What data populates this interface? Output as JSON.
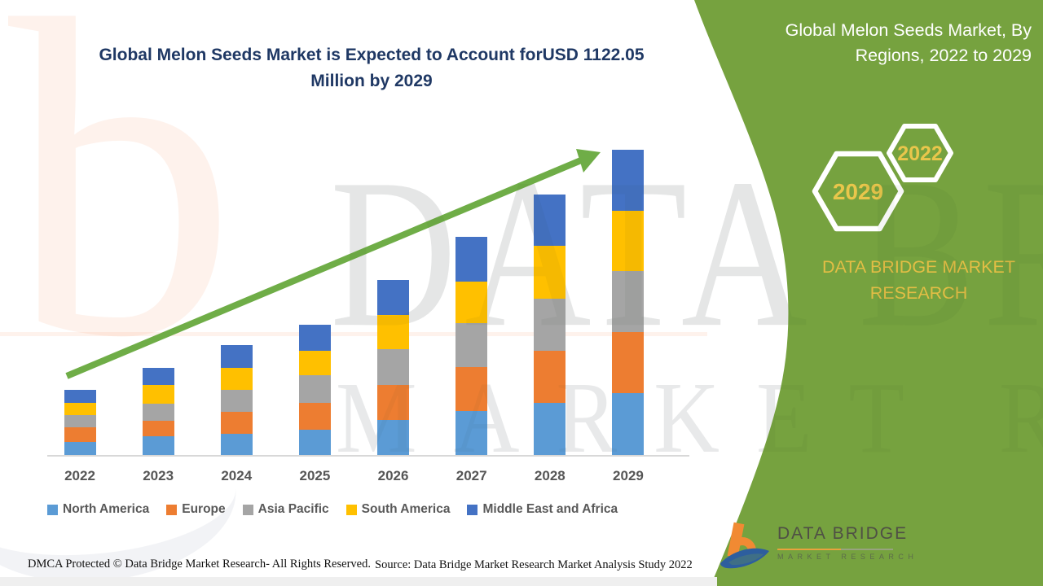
{
  "header": {
    "title_line1": "Global Melon Seeds Market is Expected to Account forUSD 1122.05",
    "title_line2": "Million by 2029"
  },
  "side_panel": {
    "heading_line1": "Global Melon Seeds Market, By",
    "heading_line2": "Regions, 2022 to 2029",
    "hexagon_front_label": "2029",
    "hexagon_back_label": "2022",
    "brand_line1": "DATA BRIDGE MARKET",
    "brand_line2": "RESEARCH"
  },
  "logo": {
    "title": "DATA BRIDGE",
    "subtitle": "MARKET RESEARCH"
  },
  "footer": {
    "dmca": "DMCA Protected © Data Bridge Market Research- All Rights Reserved.",
    "source": "Source: Data Bridge Market Research Market Analysis Study 2022"
  },
  "watermark": {
    "glyph": "b",
    "line1": "DATA BRIDGE",
    "line2": "MARKET RESEARCH"
  },
  "colors": {
    "panel_green": "#76A23F",
    "arrow_green": "#6FAD47",
    "title_navy": "#1F3864",
    "accent_yellow": "#E9C64B",
    "axis_gray": "#d8d8d8"
  },
  "chart_data": {
    "type": "bar",
    "stacked": true,
    "title": "Global Melon Seeds Market, By Regions, 2022 to 2029",
    "unit": "USD Million",
    "categories": [
      "2022",
      "2023",
      "2024",
      "2025",
      "2026",
      "2027",
      "2028",
      "2029"
    ],
    "series": [
      {
        "name": "North America",
        "color": "#5B9BD5",
        "values": [
          48,
          68,
          77,
          92,
          129,
          160,
          190,
          226
        ]
      },
      {
        "name": "Europe",
        "color": "#ED7D31",
        "values": [
          55,
          59,
          80,
          100,
          129,
          164,
          194,
          224
        ]
      },
      {
        "name": "Asia Pacific",
        "color": "#A5A5A5",
        "values": [
          43,
          61,
          83,
          100,
          130,
          159,
          191,
          226
        ]
      },
      {
        "name": "South America",
        "color": "#FFC000",
        "values": [
          44,
          70,
          79,
          90,
          126,
          155,
          192,
          222
        ]
      },
      {
        "name": "Middle East and Africa",
        "color": "#4472C4",
        "values": [
          50,
          62,
          85,
          97,
          129,
          162,
          190,
          224.05
        ]
      }
    ],
    "totals": [
      240,
      320,
      404,
      479,
      643,
      800,
      957,
      1122.05
    ],
    "highlight_total_2029": "USD 1122.05 Million",
    "ylim": [
      0,
      1180
    ],
    "gridlines": false,
    "y_axis_visible": false,
    "legend_position": "bottom",
    "trend_arrow": true
  }
}
